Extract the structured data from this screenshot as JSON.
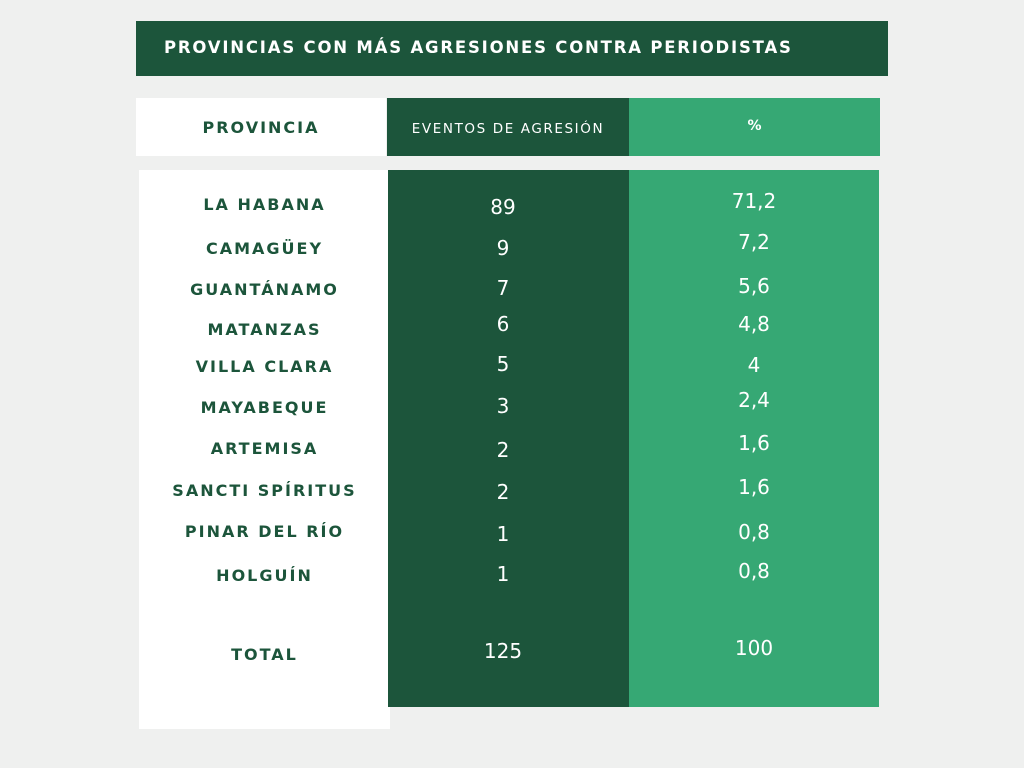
{
  "title": "PROVINCIAS CON MÁS AGRESIONES CONTRA PERIODISTAS",
  "headers": {
    "provincia": "PROVINCIA",
    "eventos": "EVENTOS DE AGRESIÓN",
    "porcentaje": "%"
  },
  "rows": [
    {
      "provincia": "LA HABANA",
      "eventos": "89",
      "porcentaje": "71,2"
    },
    {
      "provincia": "CAMAGÜEY",
      "eventos": "9",
      "porcentaje": "7,2"
    },
    {
      "provincia": "GUANTÁNAMO",
      "eventos": "7",
      "porcentaje": "5,6"
    },
    {
      "provincia": "MATANZAS",
      "eventos": "6",
      "porcentaje": "4,8"
    },
    {
      "provincia": "VILLA CLARA",
      "eventos": "5",
      "porcentaje": "4"
    },
    {
      "provincia": "MAYABEQUE",
      "eventos": "3",
      "porcentaje": "2,4"
    },
    {
      "provincia": "ARTEMISA",
      "eventos": "2",
      "porcentaje": "1,6"
    },
    {
      "provincia": "SANCTI SPÍRITUS",
      "eventos": "2",
      "porcentaje": "1,6"
    },
    {
      "provincia": "PINAR DEL RÍO",
      "eventos": "1",
      "porcentaje": "0,8"
    },
    {
      "provincia": "HOLGUÍN",
      "eventos": "1",
      "porcentaje": "0,8"
    }
  ],
  "total": {
    "provincia": "TOTAL",
    "eventos": "125",
    "porcentaje": "100"
  },
  "colors": {
    "dark_green": "#1c553b",
    "light_green": "#36a874",
    "background": "#eff0ef",
    "white": "#ffffff"
  }
}
